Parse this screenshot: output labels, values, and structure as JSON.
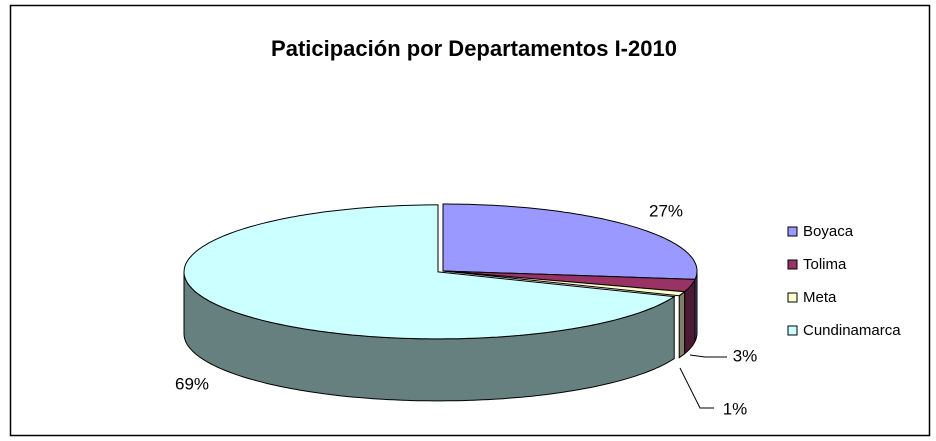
{
  "chart_data": {
    "type": "pie",
    "title": "Paticipación por  Departamentos  I-2010",
    "categories": [
      "Boyaca",
      "Tolima",
      "Meta",
      "Cundinamarca"
    ],
    "values": [
      27,
      3,
      1,
      69
    ],
    "value_labels": [
      "27%",
      "3%",
      "1%",
      "69%"
    ],
    "colors": [
      "#9999ff",
      "#993366",
      "#ffffcc",
      "#ccffff"
    ],
    "legend": "right"
  }
}
